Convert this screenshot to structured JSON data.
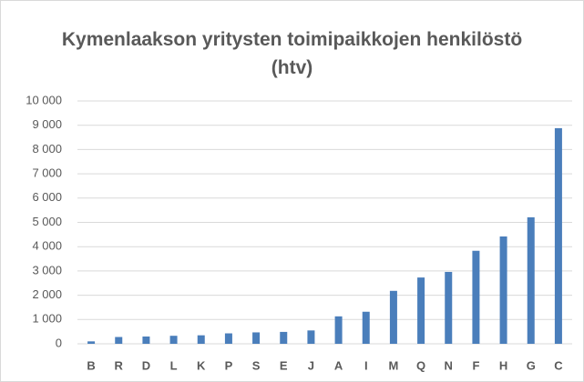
{
  "chart_data": {
    "type": "bar",
    "title": "Kymenlaakson yritysten toimipaikkojen henkilöstö (htv)",
    "categories": [
      "B",
      "R",
      "D",
      "L",
      "K",
      "P",
      "S",
      "E",
      "J",
      "A",
      "I",
      "M",
      "Q",
      "N",
      "F",
      "H",
      "G",
      "C"
    ],
    "values": [
      100,
      280,
      300,
      330,
      350,
      430,
      470,
      490,
      550,
      1130,
      1320,
      2180,
      2730,
      2960,
      3830,
      4420,
      5210,
      8880
    ],
    "color": "#4a7ebb",
    "ylim": [
      0,
      10000
    ],
    "yticks": [
      0,
      {
        "value": 1000,
        "label": "1 000"
      },
      {
        "value": 2000,
        "label": "2 000"
      },
      {
        "value": 3000,
        "label": "3 000"
      },
      {
        "value": 4000,
        "label": "4 000"
      },
      {
        "value": 5000,
        "label": "5 000"
      },
      {
        "value": 6000,
        "label": "6 000"
      },
      {
        "value": 7000,
        "label": "7 000"
      },
      {
        "value": 8000,
        "label": "8 000"
      },
      {
        "value": 9000,
        "label": "9 000"
      },
      {
        "value": 10000,
        "label": "10 000"
      }
    ],
    "grid": true
  }
}
